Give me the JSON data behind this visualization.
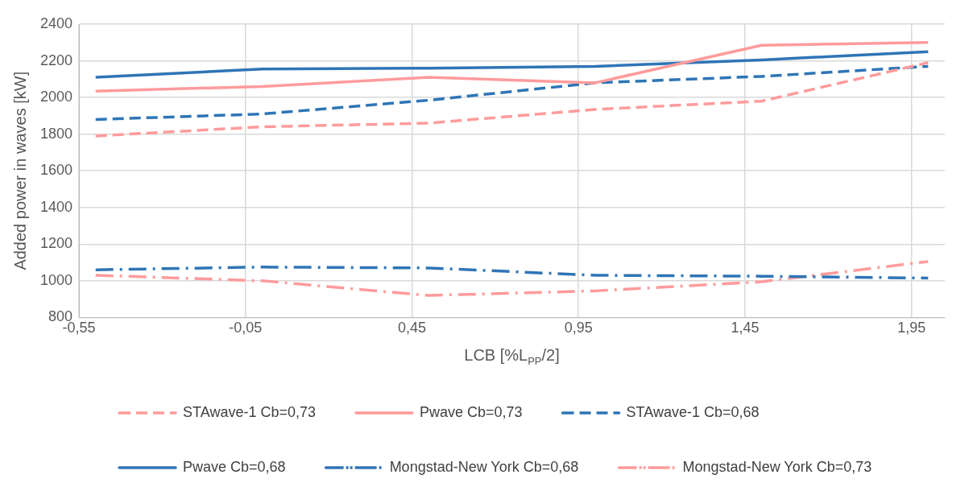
{
  "chart_data": {
    "type": "line",
    "xlabel": "LCB [%L$_{PP}$/2]",
    "ylabel": "Added power in waves [kW]",
    "x": [
      -0.5,
      0,
      0.5,
      1.0,
      1.5,
      2.0
    ],
    "xlim": [
      -0.55,
      2.05
    ],
    "xticks": [
      {
        "value": -0.55,
        "label": "-0,55"
      },
      {
        "value": -0.05,
        "label": "-0,05"
      },
      {
        "value": 0.45,
        "label": "0,45"
      },
      {
        "value": 0.95,
        "label": "0,95"
      },
      {
        "value": 1.45,
        "label": "1,45"
      },
      {
        "value": 1.95,
        "label": "1,95"
      }
    ],
    "ylim": [
      800,
      2400
    ],
    "yticks": [
      800,
      1000,
      1200,
      1400,
      1600,
      1800,
      2000,
      2200,
      2400
    ],
    "grid": true,
    "legend": "bottom",
    "marker": "none",
    "series": [
      {
        "name": "STAwave-1 Cb=0,73",
        "color": "#ff9b9b",
        "line_style": "dashed",
        "values": [
          1790,
          1840,
          1860,
          1935,
          1980,
          2190
        ]
      },
      {
        "name": "Pwave Cb=0,73",
        "color": "#ff9b9b",
        "line_style": "solid",
        "values": [
          2035,
          2060,
          2110,
          2080,
          2285,
          2300
        ]
      },
      {
        "name": "STAwave-1 Cb=0,68",
        "color": "#2e75b6",
        "line_style": "dashed",
        "values": [
          1880,
          1910,
          1985,
          2080,
          2115,
          2170
        ]
      },
      {
        "name": "Pwave Cb=0,68",
        "color": "#2e75b6",
        "line_style": "solid",
        "values": [
          2110,
          2155,
          2160,
          2170,
          2205,
          2250
        ]
      },
      {
        "name": "Mongstad-New York Cb=0,68",
        "color": "#2e75b6",
        "line_style": "dashdot",
        "values": [
          1060,
          1075,
          1070,
          1030,
          1025,
          1015
        ]
      },
      {
        "name": "Mongstad-New York Cb=0,73",
        "color": "#ff9b9b",
        "line_style": "dashdot",
        "values": [
          1030,
          1000,
          920,
          945,
          995,
          1105
        ]
      }
    ]
  }
}
